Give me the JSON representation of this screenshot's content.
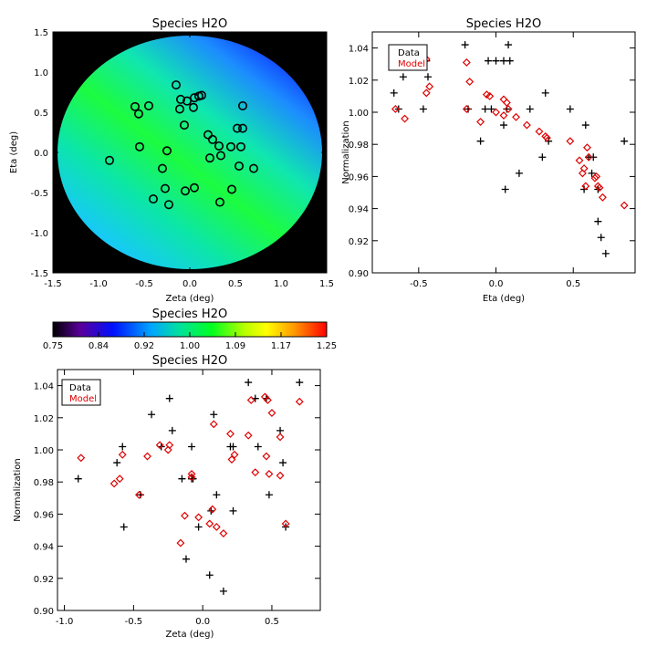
{
  "chart_data": [
    {
      "type": "heatmap",
      "title": "Species H2O",
      "xlabel": "Zeta (deg)",
      "ylabel": "Eta (deg)",
      "xlim": [
        -1.5,
        1.5
      ],
      "ylim": [
        -1.5,
        1.5
      ],
      "xticks": [
        "-1.5",
        "-1.0",
        "-0.5",
        "0.0",
        "0.5",
        "1.0",
        "1.5"
      ],
      "yticks": [
        "-1.5",
        "-1.0",
        "-0.5",
        "0.0",
        "0.5",
        "1.0",
        "1.5"
      ],
      "map_radius_deg": 1.45,
      "background": "#000000",
      "points": [
        {
          "x": -0.15,
          "y": 0.84
        },
        {
          "x": -0.1,
          "y": 0.66
        },
        {
          "x": -0.03,
          "y": 0.64
        },
        {
          "x": 0.05,
          "y": 0.68
        },
        {
          "x": 0.1,
          "y": 0.7
        },
        {
          "x": 0.13,
          "y": 0.71
        },
        {
          "x": 0.04,
          "y": 0.56
        },
        {
          "x": -0.6,
          "y": 0.57
        },
        {
          "x": -0.56,
          "y": 0.48
        },
        {
          "x": -0.45,
          "y": 0.58
        },
        {
          "x": 0.58,
          "y": 0.58
        },
        {
          "x": -0.11,
          "y": 0.54
        },
        {
          "x": -0.06,
          "y": 0.34
        },
        {
          "x": 0.52,
          "y": 0.3
        },
        {
          "x": 0.58,
          "y": 0.3
        },
        {
          "x": 0.2,
          "y": 0.22
        },
        {
          "x": 0.25,
          "y": 0.16
        },
        {
          "x": 0.32,
          "y": 0.08
        },
        {
          "x": 0.45,
          "y": 0.07
        },
        {
          "x": 0.56,
          "y": 0.07
        },
        {
          "x": -0.55,
          "y": 0.07
        },
        {
          "x": -0.25,
          "y": 0.02
        },
        {
          "x": -0.88,
          "y": -0.1
        },
        {
          "x": 0.22,
          "y": -0.07
        },
        {
          "x": 0.34,
          "y": -0.04
        },
        {
          "x": 0.54,
          "y": -0.17
        },
        {
          "x": 0.7,
          "y": -0.2
        },
        {
          "x": -0.3,
          "y": -0.2
        },
        {
          "x": -0.27,
          "y": -0.45
        },
        {
          "x": -0.05,
          "y": -0.48
        },
        {
          "x": 0.05,
          "y": -0.44
        },
        {
          "x": 0.46,
          "y": -0.46
        },
        {
          "x": -0.4,
          "y": -0.58
        },
        {
          "x": -0.23,
          "y": -0.65
        },
        {
          "x": 0.33,
          "y": -0.62
        }
      ]
    },
    {
      "type": "colorbar",
      "title": "Species H2O",
      "range": [
        0.75,
        1.25
      ],
      "tick_labels": [
        "0.75",
        "0.84",
        "0.92",
        "1.00",
        "1.09",
        "1.17",
        "1.25"
      ],
      "colors": [
        "#000000",
        "#7a00a8",
        "#0000ff",
        "#00b0ff",
        "#00e070",
        "#00ff00",
        "#c8ff00",
        "#ffff00",
        "#ffa000",
        "#ff0000"
      ]
    },
    {
      "type": "scatter",
      "title": "Species H2O",
      "xlabel": "Eta (deg)",
      "ylabel": "Normalization",
      "xlim": [
        -0.8,
        0.9
      ],
      "ylim": [
        0.9,
        1.05
      ],
      "xticks": [
        {
          "v": -0.5,
          "label": "-0.5"
        },
        {
          "v": 0.0,
          "label": "0.0"
        },
        {
          "v": 0.5,
          "label": "0.5"
        }
      ],
      "yticks": [
        {
          "v": 0.9,
          "label": "0.90"
        },
        {
          "v": 0.92,
          "label": "0.92"
        },
        {
          "v": 0.94,
          "label": "0.94"
        },
        {
          "v": 0.96,
          "label": "0.96"
        },
        {
          "v": 0.98,
          "label": "0.98"
        },
        {
          "v": 1.0,
          "label": "1.00"
        },
        {
          "v": 1.02,
          "label": "1.02"
        },
        {
          "v": 1.04,
          "label": "1.04"
        }
      ],
      "legend": {
        "position": "top-left",
        "entries": [
          {
            "name": "Data",
            "color": "#000000"
          },
          {
            "name": "Model",
            "color": "#e00000"
          }
        ]
      },
      "series": [
        {
          "name": "Data",
          "marker": "plus",
          "color": "#000000",
          "points": [
            [
              -0.66,
              1.012
            ],
            [
              -0.63,
              1.002
            ],
            [
              -0.6,
              1.022
            ],
            [
              -0.47,
              1.002
            ],
            [
              -0.45,
              1.032
            ],
            [
              -0.44,
              1.022
            ],
            [
              -0.2,
              1.042
            ],
            [
              -0.18,
              1.002
            ],
            [
              -0.1,
              0.982
            ],
            [
              -0.07,
              1.002
            ],
            [
              -0.05,
              1.032
            ],
            [
              0.0,
              1.032
            ],
            [
              0.05,
              1.032
            ],
            [
              0.06,
              0.952
            ],
            [
              0.07,
              1.002
            ],
            [
              0.08,
              1.042
            ],
            [
              0.09,
              1.032
            ],
            [
              0.15,
              0.962
            ],
            [
              0.22,
              1.002
            ],
            [
              0.3,
              0.972
            ],
            [
              0.32,
              1.012
            ],
            [
              0.48,
              1.002
            ],
            [
              0.58,
              0.992
            ],
            [
              0.6,
              0.972
            ],
            [
              0.62,
              0.962
            ],
            [
              0.66,
              0.952
            ],
            [
              0.66,
              0.932
            ],
            [
              0.68,
              0.922
            ],
            [
              0.71,
              0.912
            ],
            [
              0.83,
              0.982
            ],
            [
              -0.03,
              1.002
            ],
            [
              0.05,
              0.992
            ],
            [
              0.34,
              0.982
            ],
            [
              0.57,
              0.952
            ],
            [
              0.63,
              0.972
            ]
          ]
        },
        {
          "name": "Model",
          "marker": "diamond",
          "color": "#e00000",
          "points": [
            [
              -0.65,
              1.002
            ],
            [
              -0.62,
              1.032
            ],
            [
              -0.59,
              0.996
            ],
            [
              -0.45,
              1.033
            ],
            [
              -0.45,
              1.012
            ],
            [
              -0.43,
              1.016
            ],
            [
              -0.19,
              1.031
            ],
            [
              -0.19,
              1.002
            ],
            [
              -0.17,
              1.019
            ],
            [
              -0.1,
              0.994
            ],
            [
              -0.06,
              1.011
            ],
            [
              -0.04,
              1.01
            ],
            [
              0.0,
              1.0
            ],
            [
              0.05,
              1.008
            ],
            [
              0.05,
              0.998
            ],
            [
              0.07,
              1.006
            ],
            [
              0.08,
              1.002
            ],
            [
              0.13,
              0.997
            ],
            [
              0.2,
              0.992
            ],
            [
              0.28,
              0.988
            ],
            [
              0.32,
              0.985
            ],
            [
              0.33,
              0.984
            ],
            [
              0.48,
              0.982
            ],
            [
              0.56,
              0.962
            ],
            [
              0.57,
              0.965
            ],
            [
              0.58,
              0.954
            ],
            [
              0.59,
              0.978
            ],
            [
              0.6,
              0.972
            ],
            [
              0.64,
              0.959
            ],
            [
              0.65,
              0.96
            ],
            [
              0.66,
              0.954
            ],
            [
              0.67,
              0.953
            ],
            [
              0.69,
              0.947
            ],
            [
              0.83,
              0.942
            ],
            [
              0.54,
              0.97
            ]
          ]
        }
      ]
    },
    {
      "type": "scatter",
      "title": "Species H2O",
      "xlabel": "Zeta (deg)",
      "ylabel": "Normalization",
      "xlim": [
        -1.05,
        0.85
      ],
      "ylim": [
        0.9,
        1.05
      ],
      "xticks": [
        {
          "v": -1.0,
          "label": "-1.0"
        },
        {
          "v": -0.5,
          "label": "-0.5"
        },
        {
          "v": 0.0,
          "label": "0.0"
        },
        {
          "v": 0.5,
          "label": "0.5"
        }
      ],
      "yticks": [
        {
          "v": 0.9,
          "label": "0.90"
        },
        {
          "v": 0.92,
          "label": "0.92"
        },
        {
          "v": 0.94,
          "label": "0.94"
        },
        {
          "v": 0.96,
          "label": "0.96"
        },
        {
          "v": 0.98,
          "label": "0.98"
        },
        {
          "v": 1.0,
          "label": "1.00"
        },
        {
          "v": 1.02,
          "label": "1.02"
        },
        {
          "v": 1.04,
          "label": "1.04"
        }
      ],
      "legend": {
        "position": "top-left",
        "entries": [
          {
            "name": "Data",
            "color": "#000000"
          },
          {
            "name": "Model",
            "color": "#e00000"
          }
        ]
      },
      "series": [
        {
          "name": "Data",
          "marker": "plus",
          "color": "#000000",
          "points": [
            [
              -0.9,
              0.982
            ],
            [
              -0.62,
              0.992
            ],
            [
              -0.58,
              1.002
            ],
            [
              -0.57,
              0.952
            ],
            [
              -0.45,
              0.972
            ],
            [
              -0.37,
              1.022
            ],
            [
              -0.3,
              1.002
            ],
            [
              -0.24,
              1.032
            ],
            [
              -0.22,
              1.012
            ],
            [
              -0.15,
              0.982
            ],
            [
              -0.12,
              0.932
            ],
            [
              -0.08,
              1.002
            ],
            [
              -0.08,
              0.982
            ],
            [
              -0.03,
              0.952
            ],
            [
              0.05,
              0.922
            ],
            [
              0.06,
              0.962
            ],
            [
              0.08,
              1.022
            ],
            [
              0.1,
              0.972
            ],
            [
              0.15,
              0.912
            ],
            [
              0.2,
              1.002
            ],
            [
              0.22,
              0.962
            ],
            [
              0.33,
              1.042
            ],
            [
              0.38,
              1.032
            ],
            [
              0.4,
              1.002
            ],
            [
              0.46,
              1.032
            ],
            [
              0.48,
              0.972
            ],
            [
              0.56,
              1.012
            ],
            [
              0.58,
              0.992
            ],
            [
              0.6,
              0.952
            ],
            [
              0.7,
              1.042
            ],
            [
              -0.07,
              0.982
            ],
            [
              0.22,
              1.002
            ]
          ]
        },
        {
          "name": "Model",
          "marker": "diamond",
          "color": "#e00000",
          "points": [
            [
              -0.88,
              0.995
            ],
            [
              -0.64,
              0.979
            ],
            [
              -0.6,
              0.982
            ],
            [
              -0.58,
              0.997
            ],
            [
              -0.46,
              0.972
            ],
            [
              -0.4,
              0.996
            ],
            [
              -0.31,
              1.003
            ],
            [
              -0.25,
              1.0
            ],
            [
              -0.24,
              1.003
            ],
            [
              -0.16,
              0.942
            ],
            [
              -0.13,
              0.959
            ],
            [
              -0.08,
              0.983
            ],
            [
              -0.08,
              0.985
            ],
            [
              -0.03,
              0.958
            ],
            [
              0.05,
              0.954
            ],
            [
              0.07,
              0.963
            ],
            [
              0.08,
              1.016
            ],
            [
              0.1,
              0.952
            ],
            [
              0.15,
              0.948
            ],
            [
              0.2,
              1.01
            ],
            [
              0.21,
              0.994
            ],
            [
              0.23,
              0.997
            ],
            [
              0.33,
              1.009
            ],
            [
              0.35,
              1.031
            ],
            [
              0.38,
              0.986
            ],
            [
              0.45,
              1.033
            ],
            [
              0.46,
              0.996
            ],
            [
              0.48,
              0.985
            ],
            [
              0.5,
              1.023
            ],
            [
              0.56,
              1.008
            ],
            [
              0.56,
              0.984
            ],
            [
              0.6,
              0.954
            ],
            [
              0.7,
              1.03
            ],
            [
              0.47,
              1.031
            ]
          ]
        }
      ]
    }
  ]
}
